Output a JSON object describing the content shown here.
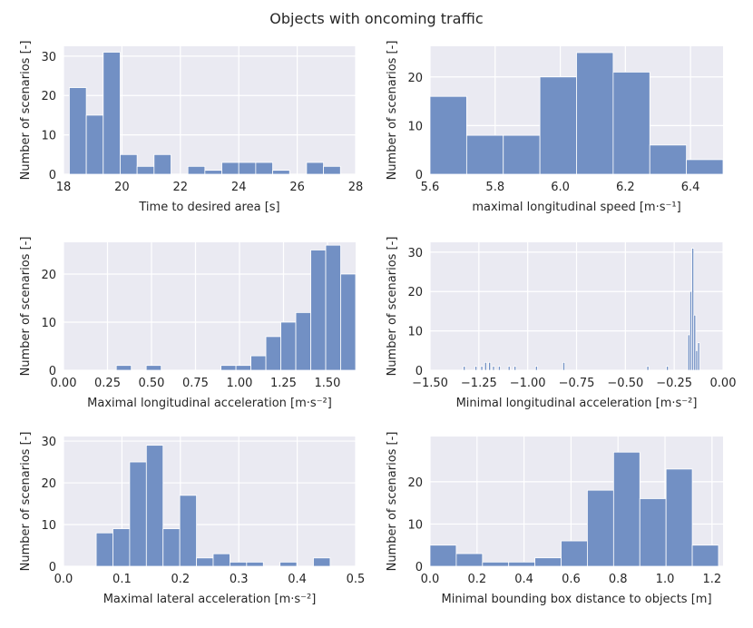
{
  "title": "Objects with oncoming traffic",
  "chart_data": [
    {
      "type": "histogram",
      "xlabel": "Time to desired area [s]",
      "ylabel": "Number of scenarios [-]",
      "bins": [
        18.2,
        18.78,
        19.36,
        19.94,
        20.52,
        21.1,
        21.68,
        22.26,
        22.84,
        23.42,
        24.0,
        24.58,
        25.16,
        25.74,
        26.32,
        26.9,
        27.48
      ],
      "values": [
        22,
        15,
        31,
        5,
        2,
        5,
        0,
        2,
        1,
        3,
        3,
        3,
        1,
        0,
        3,
        2
      ],
      "color": "#7290c4",
      "grid": true,
      "xlim": [
        18,
        28
      ],
      "ylim": [
        0,
        32.5
      ],
      "xticks": [
        18,
        20,
        22,
        24,
        26,
        28
      ],
      "yticks": [
        0,
        10,
        20,
        30
      ]
    },
    {
      "type": "histogram",
      "xlabel": "maximal longitudinal speed [m·s⁻¹]",
      "ylabel": "Number of scenarios [-]",
      "bins": [
        5.6,
        5.7125,
        5.825,
        5.9375,
        6.05,
        6.1625,
        6.275,
        6.3875,
        6.5
      ],
      "values": [
        16,
        8,
        8,
        20,
        25,
        21,
        6,
        3
      ],
      "color": "#7290c4",
      "grid": true,
      "xlim": [
        5.6,
        6.5
      ],
      "ylim": [
        0,
        26.3
      ],
      "xticks": [
        5.6,
        5.8,
        {
          "value": 6,
          "label": "6.0"
        },
        6.2,
        6.4
      ],
      "yticks": [
        0,
        10,
        20
      ]
    },
    {
      "type": "histogram",
      "xlabel": "Maximal longitudinal acceleration [m·s⁻²]",
      "ylabel": "Number of scenarios [-]",
      "bins": [
        0.3,
        0.385,
        0.47,
        0.555,
        0.64,
        0.725,
        0.81,
        0.895,
        0.98,
        1.065,
        1.15,
        1.235,
        1.32,
        1.405,
        1.49,
        1.575,
        1.66
      ],
      "values": [
        1,
        0,
        1,
        0,
        0,
        0,
        0,
        1,
        1,
        3,
        7,
        10,
        12,
        25,
        26,
        20
      ],
      "color": "#7290c4",
      "grid": true,
      "xlim": [
        0,
        1.66
      ],
      "ylim": [
        0,
        26.6
      ],
      "xticks": [
        {
          "value": 0,
          "label": "0.00"
        },
        0.25,
        {
          "value": 0.5,
          "label": "0.50"
        },
        0.75,
        {
          "value": 1,
          "label": "1.00"
        },
        1.25,
        {
          "value": 1.5,
          "label": "1.50"
        }
      ],
      "yticks": [
        0,
        10,
        20
      ]
    },
    {
      "type": "histogram",
      "xlabel": "Minimal longitudinal acceleration [m·s⁻²]",
      "ylabel": "Number of scenarios [-]",
      "bins": [
        -1.33,
        -1.32,
        -1.27,
        -1.26,
        -1.24,
        -1.23,
        -1.22,
        -1.21,
        -1.2,
        -1.19,
        -1.18,
        -1.17,
        -1.15,
        -1.14,
        -1.1,
        -1.09,
        -1.07,
        -1.06,
        -0.96,
        -0.95,
        -0.82,
        -0.81,
        -0.39,
        -0.38,
        -0.29,
        -0.28,
        -0.18,
        -0.17,
        -0.16,
        -0.15,
        -0.14,
        -0.13,
        -0.12
      ],
      "values": [
        1,
        0,
        1,
        0,
        1,
        0,
        2,
        0,
        2,
        0,
        1,
        0,
        1,
        0,
        1,
        0,
        1,
        0,
        1,
        0,
        2,
        0,
        1,
        0,
        1,
        0,
        9,
        20,
        31,
        14,
        5,
        7
      ],
      "color": "#7290c4",
      "grid": true,
      "xlim": [
        -1.5,
        0
      ],
      "ylim": [
        0,
        32.5
      ],
      "xticks": [
        {
          "value": -1.5,
          "label": "−1.50"
        },
        {
          "value": -1.25,
          "label": "−1.25"
        },
        {
          "value": -1,
          "label": "−1.00"
        },
        {
          "value": -0.75,
          "label": "−0.75"
        },
        {
          "value": -0.5,
          "label": "−0.50"
        },
        {
          "value": -0.25,
          "label": "−0.25"
        },
        {
          "value": 0,
          "label": "0.00"
        }
      ],
      "yticks": [
        0,
        10,
        20,
        30
      ]
    },
    {
      "type": "histogram",
      "xlabel": "Maximal lateral acceleration [m·s⁻²]",
      "ylabel": "Number of scenarios [-]",
      "bins": [
        0.056,
        0.0846,
        0.1132,
        0.1418,
        0.1704,
        0.199,
        0.2276,
        0.2562,
        0.2848,
        0.3134,
        0.342,
        0.3706,
        0.3992,
        0.4278,
        0.4564
      ],
      "values": [
        8,
        9,
        25,
        29,
        9,
        17,
        2,
        3,
        1,
        1,
        0,
        1,
        0,
        2
      ],
      "color": "#7290c4",
      "grid": true,
      "xlim": [
        0,
        0.5
      ],
      "ylim": [
        0,
        31.1
      ],
      "xticks": [
        {
          "value": 0,
          "label": "0.0"
        },
        0.1,
        0.2,
        0.3,
        0.4,
        0.5
      ],
      "yticks": [
        0,
        10,
        20,
        30
      ]
    },
    {
      "type": "histogram",
      "xlabel": "Minimal bounding box distance to objects [m]",
      "ylabel": "Number of scenarios [-]",
      "bins": [
        0,
        0.1116,
        0.2232,
        0.3348,
        0.4464,
        0.558,
        0.6696,
        0.7812,
        0.8928,
        1.0044,
        1.116,
        1.2276
      ],
      "values": [
        5,
        3,
        1,
        1,
        2,
        6,
        18,
        27,
        16,
        23,
        5
      ],
      "color": "#7290c4",
      "grid": true,
      "xlim": [
        0,
        1.247
      ],
      "ylim": [
        0,
        30.7
      ],
      "xticks": [
        {
          "value": 0,
          "label": "0.0"
        },
        0.2,
        0.4,
        0.6,
        0.8,
        {
          "value": 1,
          "label": "1.0"
        },
        1.2
      ],
      "yticks": [
        0,
        10,
        20
      ]
    }
  ]
}
